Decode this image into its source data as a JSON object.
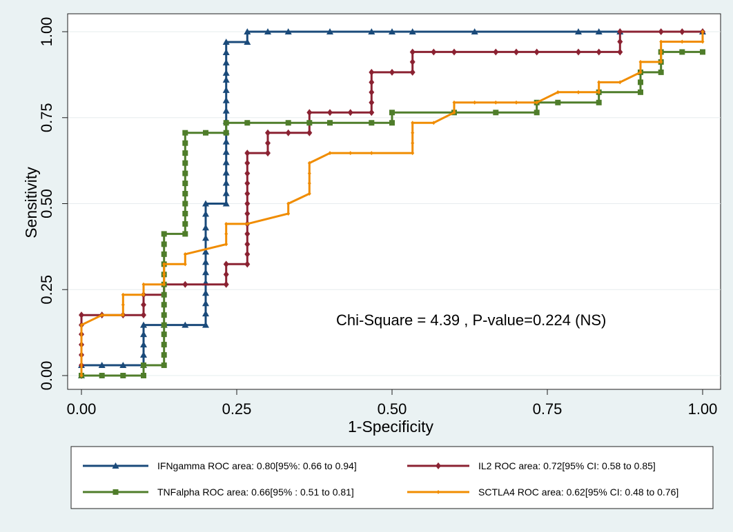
{
  "chart_data": {
    "type": "line",
    "subtype": "roc",
    "xlabel": "1-Specificity",
    "ylabel": "Sensitivity",
    "xlim": [
      0,
      1
    ],
    "ylim": [
      0,
      1
    ],
    "x_ticks": [
      0,
      0.25,
      0.5,
      0.75,
      1
    ],
    "y_ticks": [
      0,
      0.25,
      0.5,
      0.75,
      1
    ],
    "x_tick_labels": [
      "0.00",
      "0.25",
      "0.50",
      "0.75",
      "1.00"
    ],
    "y_tick_labels": [
      "0.00",
      "0.25",
      "0.50",
      "0.75",
      "1.00"
    ],
    "grid": true,
    "annotation": "Chi-Square = 4.39 , P-value=0.224 (NS)",
    "legend_position": "bottom",
    "series": [
      {
        "name": "IFNgamma",
        "label": "IFNgamma ROC area: 0.80[95%: 0.66 to 0.94]",
        "color": "#1a4a7a",
        "marker": "triangle",
        "points": [
          [
            0,
            0
          ],
          [
            0,
            0.03
          ],
          [
            0.033,
            0.03
          ],
          [
            0.067,
            0.03
          ],
          [
            0.1,
            0.03
          ],
          [
            0.1,
            0.06
          ],
          [
            0.1,
            0.09
          ],
          [
            0.1,
            0.12
          ],
          [
            0.1,
            0.147
          ],
          [
            0.133,
            0.147
          ],
          [
            0.167,
            0.147
          ],
          [
            0.2,
            0.147
          ],
          [
            0.2,
            0.18
          ],
          [
            0.2,
            0.21
          ],
          [
            0.2,
            0.24
          ],
          [
            0.2,
            0.27
          ],
          [
            0.2,
            0.3
          ],
          [
            0.2,
            0.33
          ],
          [
            0.2,
            0.36
          ],
          [
            0.2,
            0.4
          ],
          [
            0.2,
            0.43
          ],
          [
            0.2,
            0.47
          ],
          [
            0.2,
            0.5
          ],
          [
            0.233,
            0.5
          ],
          [
            0.233,
            0.53
          ],
          [
            0.233,
            0.56
          ],
          [
            0.233,
            0.59
          ],
          [
            0.233,
            0.62
          ],
          [
            0.233,
            0.65
          ],
          [
            0.233,
            0.68
          ],
          [
            0.233,
            0.71
          ],
          [
            0.233,
            0.74
          ],
          [
            0.233,
            0.77
          ],
          [
            0.233,
            0.8
          ],
          [
            0.233,
            0.83
          ],
          [
            0.233,
            0.86
          ],
          [
            0.233,
            0.88
          ],
          [
            0.233,
            0.91
          ],
          [
            0.233,
            0.94
          ],
          [
            0.233,
            0.97
          ],
          [
            0.267,
            0.97
          ],
          [
            0.267,
            1.0
          ],
          [
            0.3,
            1.0
          ],
          [
            0.333,
            1.0
          ],
          [
            0.4,
            1.0
          ],
          [
            0.467,
            1.0
          ],
          [
            0.5,
            1.0
          ],
          [
            0.533,
            1.0
          ],
          [
            0.633,
            1.0
          ],
          [
            0.8,
            1.0
          ],
          [
            0.833,
            1.0
          ],
          [
            0.867,
            1.0
          ],
          [
            1.0,
            1.0
          ]
        ]
      },
      {
        "name": "IL2",
        "label": "IL2 ROC area: 0.72[95% CI: 0.58 to 0.85]",
        "color": "#8b2232",
        "marker": "diamond",
        "points": [
          [
            0,
            0
          ],
          [
            0,
            0.03
          ],
          [
            0,
            0.06
          ],
          [
            0,
            0.09
          ],
          [
            0,
            0.12
          ],
          [
            0,
            0.147
          ],
          [
            0,
            0.176
          ],
          [
            0.033,
            0.176
          ],
          [
            0.067,
            0.176
          ],
          [
            0.1,
            0.176
          ],
          [
            0.1,
            0.206
          ],
          [
            0.1,
            0.235
          ],
          [
            0.133,
            0.235
          ],
          [
            0.133,
            0.265
          ],
          [
            0.167,
            0.265
          ],
          [
            0.233,
            0.265
          ],
          [
            0.233,
            0.294
          ],
          [
            0.233,
            0.324
          ],
          [
            0.267,
            0.324
          ],
          [
            0.267,
            0.353
          ],
          [
            0.267,
            0.382
          ],
          [
            0.267,
            0.412
          ],
          [
            0.267,
            0.441
          ],
          [
            0.267,
            0.471
          ],
          [
            0.267,
            0.5
          ],
          [
            0.267,
            0.529
          ],
          [
            0.267,
            0.559
          ],
          [
            0.267,
            0.588
          ],
          [
            0.267,
            0.618
          ],
          [
            0.267,
            0.647
          ],
          [
            0.3,
            0.647
          ],
          [
            0.3,
            0.676
          ],
          [
            0.3,
            0.706
          ],
          [
            0.333,
            0.706
          ],
          [
            0.367,
            0.706
          ],
          [
            0.367,
            0.735
          ],
          [
            0.367,
            0.765
          ],
          [
            0.4,
            0.765
          ],
          [
            0.433,
            0.765
          ],
          [
            0.467,
            0.765
          ],
          [
            0.467,
            0.794
          ],
          [
            0.467,
            0.824
          ],
          [
            0.467,
            0.853
          ],
          [
            0.467,
            0.882
          ],
          [
            0.5,
            0.882
          ],
          [
            0.533,
            0.882
          ],
          [
            0.533,
            0.912
          ],
          [
            0.533,
            0.941
          ],
          [
            0.567,
            0.941
          ],
          [
            0.6,
            0.941
          ],
          [
            0.667,
            0.941
          ],
          [
            0.7,
            0.941
          ],
          [
            0.733,
            0.941
          ],
          [
            0.8,
            0.941
          ],
          [
            0.833,
            0.941
          ],
          [
            0.867,
            0.941
          ],
          [
            0.867,
            0.971
          ],
          [
            0.867,
            1.0
          ],
          [
            0.933,
            1.0
          ],
          [
            0.967,
            1.0
          ],
          [
            1.0,
            1.0
          ]
        ]
      },
      {
        "name": "TNFalpha",
        "label": "TNFalpha ROC area: 0.66[95% : 0.51 to 0.81]",
        "color": "#4f7d2a",
        "marker": "square",
        "points": [
          [
            0,
            0
          ],
          [
            0.033,
            0
          ],
          [
            0.067,
            0
          ],
          [
            0.1,
            0
          ],
          [
            0.1,
            0.03
          ],
          [
            0.133,
            0.03
          ],
          [
            0.133,
            0.06
          ],
          [
            0.133,
            0.09
          ],
          [
            0.133,
            0.12
          ],
          [
            0.133,
            0.147
          ],
          [
            0.133,
            0.176
          ],
          [
            0.133,
            0.206
          ],
          [
            0.133,
            0.235
          ],
          [
            0.133,
            0.265
          ],
          [
            0.133,
            0.294
          ],
          [
            0.133,
            0.324
          ],
          [
            0.133,
            0.353
          ],
          [
            0.133,
            0.382
          ],
          [
            0.133,
            0.412
          ],
          [
            0.167,
            0.412
          ],
          [
            0.167,
            0.441
          ],
          [
            0.167,
            0.471
          ],
          [
            0.167,
            0.5
          ],
          [
            0.167,
            0.529
          ],
          [
            0.167,
            0.559
          ],
          [
            0.167,
            0.588
          ],
          [
            0.167,
            0.618
          ],
          [
            0.167,
            0.647
          ],
          [
            0.167,
            0.676
          ],
          [
            0.167,
            0.706
          ],
          [
            0.2,
            0.706
          ],
          [
            0.233,
            0.706
          ],
          [
            0.233,
            0.735
          ],
          [
            0.267,
            0.735
          ],
          [
            0.333,
            0.735
          ],
          [
            0.367,
            0.735
          ],
          [
            0.4,
            0.735
          ],
          [
            0.467,
            0.735
          ],
          [
            0.5,
            0.735
          ],
          [
            0.5,
            0.765
          ],
          [
            0.6,
            0.765
          ],
          [
            0.667,
            0.765
          ],
          [
            0.733,
            0.765
          ],
          [
            0.733,
            0.794
          ],
          [
            0.767,
            0.794
          ],
          [
            0.833,
            0.794
          ],
          [
            0.833,
            0.824
          ],
          [
            0.9,
            0.824
          ],
          [
            0.9,
            0.853
          ],
          [
            0.9,
            0.882
          ],
          [
            0.933,
            0.882
          ],
          [
            0.933,
            0.912
          ],
          [
            0.933,
            0.941
          ],
          [
            0.967,
            0.941
          ],
          [
            1.0,
            0.941
          ]
        ]
      },
      {
        "name": "SCTLA4",
        "label": "SCTLA4 ROC area: 0.62[95% CI: 0.48 to 0.76]",
        "color": "#f08c00",
        "marker": "small-diamond",
        "points": [
          [
            0,
            0
          ],
          [
            0,
            0.147
          ],
          [
            0.033,
            0.176
          ],
          [
            0.067,
            0.176
          ],
          [
            0.067,
            0.206
          ],
          [
            0.067,
            0.235
          ],
          [
            0.1,
            0.235
          ],
          [
            0.1,
            0.265
          ],
          [
            0.133,
            0.265
          ],
          [
            0.133,
            0.294
          ],
          [
            0.133,
            0.324
          ],
          [
            0.167,
            0.324
          ],
          [
            0.167,
            0.353
          ],
          [
            0.233,
            0.382
          ],
          [
            0.233,
            0.412
          ],
          [
            0.233,
            0.441
          ],
          [
            0.267,
            0.441
          ],
          [
            0.333,
            0.471
          ],
          [
            0.333,
            0.5
          ],
          [
            0.367,
            0.529
          ],
          [
            0.367,
            0.559
          ],
          [
            0.367,
            0.588
          ],
          [
            0.367,
            0.618
          ],
          [
            0.4,
            0.647
          ],
          [
            0.433,
            0.647
          ],
          [
            0.467,
            0.647
          ],
          [
            0.533,
            0.647
          ],
          [
            0.533,
            0.676
          ],
          [
            0.533,
            0.706
          ],
          [
            0.533,
            0.735
          ],
          [
            0.567,
            0.735
          ],
          [
            0.6,
            0.765
          ],
          [
            0.6,
            0.794
          ],
          [
            0.633,
            0.794
          ],
          [
            0.667,
            0.794
          ],
          [
            0.7,
            0.794
          ],
          [
            0.733,
            0.794
          ],
          [
            0.767,
            0.824
          ],
          [
            0.8,
            0.824
          ],
          [
            0.833,
            0.824
          ],
          [
            0.833,
            0.853
          ],
          [
            0.867,
            0.853
          ],
          [
            0.9,
            0.882
          ],
          [
            0.9,
            0.912
          ],
          [
            0.933,
            0.912
          ],
          [
            0.933,
            0.941
          ],
          [
            0.933,
            0.971
          ],
          [
            0.967,
            0.971
          ],
          [
            1.0,
            0.971
          ],
          [
            1.0,
            1.0
          ]
        ]
      }
    ]
  }
}
